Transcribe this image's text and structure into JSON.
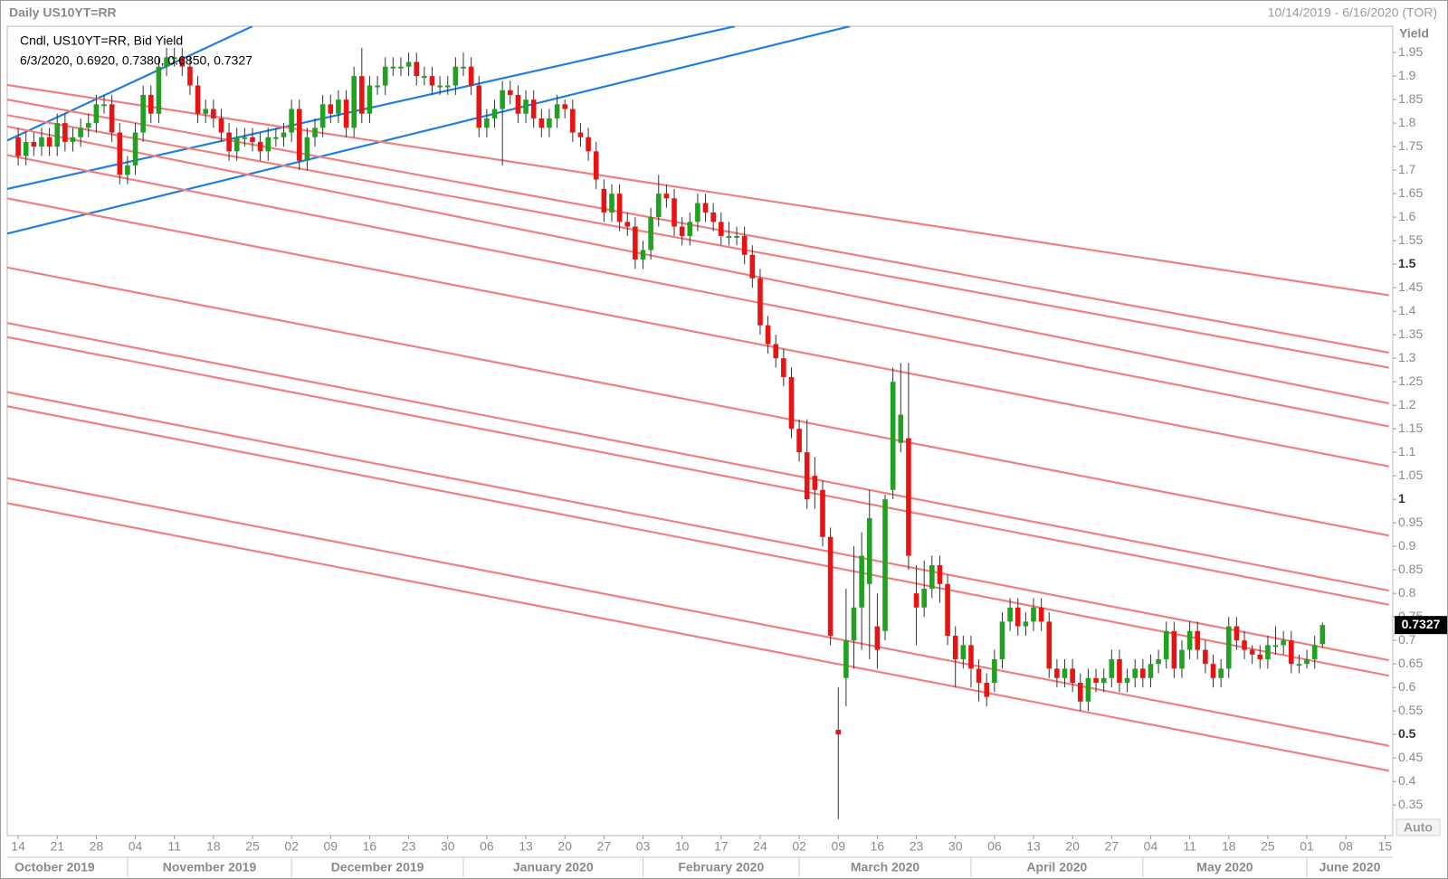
{
  "chart_data": {
    "type": "candlestick",
    "title": "Daily US10YT=RR",
    "date_range": "10/14/2019 - 6/16/2020 (TOR)",
    "legend_title": "Cndl, US10YT=RR, Bid Yield",
    "legend_info": "6/3/2020, 0.6920, 0.7380, 0.6850, 0.7327",
    "y_label": "Yield",
    "auto_button": "Auto",
    "up_color": "#22a022",
    "down_color": "#e81414",
    "xlim": [
      -1.4,
      176
    ],
    "ylim": [
      0.285,
      2.006
    ],
    "yticks": [
      0.35,
      0.4,
      0.45,
      0.5,
      0.55,
      0.6,
      0.65,
      0.7,
      0.75,
      0.8,
      0.85,
      0.9,
      0.95,
      1,
      1.05,
      1.1,
      1.15,
      1.2,
      1.25,
      1.3,
      1.35,
      1.4,
      1.45,
      1.5,
      1.55,
      1.6,
      1.65,
      1.7,
      1.75,
      1.8,
      1.85,
      1.9,
      1.95
    ],
    "xticks": [
      {
        "value": 0,
        "label": "14"
      },
      {
        "value": 5,
        "label": "21"
      },
      {
        "value": 10,
        "label": "28"
      },
      {
        "value": 15,
        "label": "04"
      },
      {
        "value": 20,
        "label": "11"
      },
      {
        "value": 25,
        "label": "18"
      },
      {
        "value": 30,
        "label": "25"
      },
      {
        "value": 35,
        "label": "02"
      },
      {
        "value": 40,
        "label": "09"
      },
      {
        "value": 45,
        "label": "16"
      },
      {
        "value": 50,
        "label": "23"
      },
      {
        "value": 55,
        "label": "30"
      },
      {
        "value": 60,
        "label": "06"
      },
      {
        "value": 65,
        "label": "13"
      },
      {
        "value": 70,
        "label": "20"
      },
      {
        "value": 75,
        "label": "27"
      },
      {
        "value": 80,
        "label": "03"
      },
      {
        "value": 85,
        "label": "10"
      },
      {
        "value": 90,
        "label": "17"
      },
      {
        "value": 95,
        "label": "24"
      },
      {
        "value": 100,
        "label": "02"
      },
      {
        "value": 105,
        "label": "09"
      },
      {
        "value": 110,
        "label": "16"
      },
      {
        "value": 115,
        "label": "23"
      },
      {
        "value": 120,
        "label": "30"
      },
      {
        "value": 125,
        "label": "06"
      },
      {
        "value": 130,
        "label": "13"
      },
      {
        "value": 135,
        "label": "20"
      },
      {
        "value": 140,
        "label": "27"
      },
      {
        "value": 145,
        "label": "04"
      },
      {
        "value": 150,
        "label": "11"
      },
      {
        "value": 155,
        "label": "18"
      },
      {
        "value": 160,
        "label": "25"
      },
      {
        "value": 165,
        "label": "01"
      },
      {
        "value": 170,
        "label": "08"
      },
      {
        "value": 175,
        "label": "15"
      }
    ],
    "month_labels": [
      {
        "value": -1.4,
        "label": "October 2019"
      },
      {
        "value": 14,
        "label": "November 2019"
      },
      {
        "value": 35,
        "label": "December 2019"
      },
      {
        "value": 57,
        "label": "January 2020"
      },
      {
        "value": 80,
        "label": "February 2020"
      },
      {
        "value": 100,
        "label": "March 2020"
      },
      {
        "value": 122,
        "label": "April 2020"
      },
      {
        "value": 144,
        "label": "May 2020"
      },
      {
        "value": 165,
        "label": "June 2020"
      }
    ],
    "trendlines": [
      {
        "color": "#1f7ee0",
        "points": [
          -1.4,
          1.763,
          30,
          2.006
        ]
      },
      {
        "color": "#1f7ee0",
        "points": [
          -1.4,
          1.66,
          91.8,
          2.006
        ]
      },
      {
        "color": "#1f7ee0",
        "points": [
          -1.4,
          1.565,
          106.5,
          2.006
        ]
      },
      {
        "color": "#f08080",
        "points": [
          -1.4,
          1.881,
          175.5,
          1.434
        ]
      },
      {
        "color": "#f08080",
        "points": [
          -1.4,
          1.85,
          175.5,
          1.312
        ]
      },
      {
        "color": "#f08080",
        "points": [
          -1.4,
          1.817,
          175.5,
          1.28
        ]
      },
      {
        "color": "#f08080",
        "points": [
          -1.4,
          1.793,
          175.5,
          1.204
        ]
      },
      {
        "color": "#f08080",
        "points": [
          -1.4,
          1.732,
          175.5,
          1.155
        ]
      },
      {
        "color": "#f08080",
        "points": [
          -1.4,
          1.64,
          175.5,
          1.07
        ]
      },
      {
        "color": "#f08080",
        "points": [
          -1.4,
          1.493,
          175.5,
          0.923
        ]
      },
      {
        "color": "#f08080",
        "points": [
          -1.4,
          1.375,
          175.5,
          0.806
        ]
      },
      {
        "color": "#f08080",
        "points": [
          -1.4,
          1.345,
          175.5,
          0.776
        ]
      },
      {
        "color": "#f08080",
        "points": [
          -1.4,
          1.228,
          175.5,
          0.658
        ]
      },
      {
        "color": "#f08080",
        "points": [
          -1.4,
          1.198,
          175.5,
          0.625
        ]
      },
      {
        "color": "#f08080",
        "points": [
          -1.4,
          1.045,
          175.5,
          0.476
        ]
      },
      {
        "color": "#f08080",
        "points": [
          -1.4,
          0.992,
          175.5,
          0.423
        ]
      }
    ],
    "candles": [
      [
        1.77,
        1.79,
        1.71,
        1.73
      ],
      [
        1.73,
        1.78,
        1.71,
        1.76
      ],
      [
        1.76,
        1.78,
        1.73,
        1.75
      ],
      [
        1.75,
        1.79,
        1.73,
        1.77
      ],
      [
        1.77,
        1.79,
        1.73,
        1.75
      ],
      [
        1.75,
        1.82,
        1.73,
        1.8
      ],
      [
        1.8,
        1.82,
        1.74,
        1.76
      ],
      [
        1.76,
        1.79,
        1.74,
        1.77
      ],
      [
        1.77,
        1.81,
        1.75,
        1.79
      ],
      [
        1.79,
        1.82,
        1.77,
        1.8
      ],
      [
        1.8,
        1.86,
        1.78,
        1.84
      ],
      [
        1.84,
        1.86,
        1.82,
        1.84
      ],
      [
        1.84,
        1.86,
        1.76,
        1.78
      ],
      [
        1.78,
        1.8,
        1.67,
        1.69
      ],
      [
        1.69,
        1.73,
        1.67,
        1.71
      ],
      [
        1.71,
        1.8,
        1.69,
        1.78
      ],
      [
        1.78,
        1.88,
        1.76,
        1.86
      ],
      [
        1.86,
        1.88,
        1.8,
        1.82
      ],
      [
        1.82,
        1.94,
        1.8,
        1.92
      ],
      [
        1.92,
        1.96,
        1.9,
        1.94
      ],
      [
        1.94,
        1.96,
        1.92,
        1.94
      ],
      [
        1.94,
        1.96,
        1.9,
        1.92
      ],
      [
        1.92,
        1.94,
        1.86,
        1.88
      ],
      [
        1.88,
        1.9,
        1.8,
        1.82
      ],
      [
        1.82,
        1.85,
        1.8,
        1.83
      ],
      [
        1.83,
        1.85,
        1.79,
        1.81
      ],
      [
        1.81,
        1.83,
        1.76,
        1.78
      ],
      [
        1.78,
        1.8,
        1.72,
        1.74
      ],
      [
        1.74,
        1.79,
        1.72,
        1.77
      ],
      [
        1.77,
        1.79,
        1.75,
        1.77
      ],
      [
        1.77,
        1.79,
        1.74,
        1.76
      ],
      [
        1.76,
        1.78,
        1.72,
        1.74
      ],
      [
        1.74,
        1.79,
        1.72,
        1.77
      ],
      [
        1.77,
        1.79,
        1.75,
        1.77
      ],
      [
        1.77,
        1.8,
        1.75,
        1.78
      ],
      [
        1.78,
        1.85,
        1.76,
        1.83
      ],
      [
        1.83,
        1.85,
        1.7,
        1.72
      ],
      [
        1.72,
        1.79,
        1.7,
        1.77
      ],
      [
        1.77,
        1.81,
        1.75,
        1.79
      ],
      [
        1.79,
        1.86,
        1.77,
        1.84
      ],
      [
        1.84,
        1.86,
        1.8,
        1.82
      ],
      [
        1.82,
        1.87,
        1.8,
        1.85
      ],
      [
        1.85,
        1.87,
        1.77,
        1.79
      ],
      [
        1.79,
        1.92,
        1.77,
        1.9
      ],
      [
        1.9,
        1.96,
        1.8,
        1.82
      ],
      [
        1.82,
        1.9,
        1.8,
        1.88
      ],
      [
        1.88,
        1.9,
        1.86,
        1.88
      ],
      [
        1.88,
        1.94,
        1.86,
        1.92
      ],
      [
        1.92,
        1.94,
        1.9,
        1.92
      ],
      [
        1.92,
        1.94,
        1.9,
        1.92
      ],
      [
        1.92,
        1.95,
        1.9,
        1.93
      ],
      [
        1.93,
        1.95,
        1.88,
        1.9
      ],
      [
        1.9,
        1.92,
        1.88,
        1.9
      ],
      [
        1.9,
        1.92,
        1.86,
        1.88
      ],
      [
        1.88,
        1.9,
        1.86,
        1.88
      ],
      [
        1.88,
        1.9,
        1.86,
        1.88
      ],
      [
        1.88,
        1.94,
        1.86,
        1.92
      ],
      [
        1.92,
        1.95,
        1.9,
        1.92
      ],
      [
        1.92,
        1.94,
        1.86,
        1.88
      ],
      [
        1.88,
        1.9,
        1.77,
        1.79
      ],
      [
        1.79,
        1.83,
        1.77,
        1.81
      ],
      [
        1.81,
        1.85,
        1.79,
        1.83
      ],
      [
        1.83,
        1.89,
        1.71,
        1.87
      ],
      [
        1.87,
        1.89,
        1.84,
        1.86
      ],
      [
        1.86,
        1.88,
        1.8,
        1.82
      ],
      [
        1.82,
        1.87,
        1.8,
        1.85
      ],
      [
        1.85,
        1.87,
        1.79,
        1.81
      ],
      [
        1.81,
        1.83,
        1.77,
        1.79
      ],
      [
        1.79,
        1.83,
        1.77,
        1.81
      ],
      [
        1.81,
        1.86,
        1.79,
        1.84
      ],
      [
        1.84,
        1.85,
        1.81,
        1.83
      ],
      [
        1.83,
        1.85,
        1.76,
        1.78
      ],
      [
        1.78,
        1.8,
        1.75,
        1.77
      ],
      [
        1.77,
        1.79,
        1.72,
        1.74
      ],
      [
        1.74,
        1.76,
        1.66,
        1.68
      ],
      [
        1.66,
        1.68,
        1.59,
        1.61
      ],
      [
        1.61,
        1.67,
        1.59,
        1.65
      ],
      [
        1.65,
        1.67,
        1.57,
        1.59
      ],
      [
        1.59,
        1.61,
        1.56,
        1.58
      ],
      [
        1.58,
        1.6,
        1.49,
        1.51
      ],
      [
        1.51,
        1.55,
        1.49,
        1.53
      ],
      [
        1.53,
        1.62,
        1.51,
        1.6
      ],
      [
        1.6,
        1.69,
        1.58,
        1.65
      ],
      [
        1.65,
        1.67,
        1.62,
        1.64
      ],
      [
        1.64,
        1.66,
        1.56,
        1.58
      ],
      [
        1.58,
        1.6,
        1.54,
        1.56
      ],
      [
        1.56,
        1.61,
        1.54,
        1.59
      ],
      [
        1.59,
        1.65,
        1.57,
        1.63
      ],
      [
        1.63,
        1.65,
        1.59,
        1.61
      ],
      [
        1.61,
        1.63,
        1.57,
        1.59
      ],
      [
        1.59,
        1.61,
        1.54,
        1.56
      ],
      [
        1.56,
        1.59,
        1.54,
        1.56
      ],
      [
        1.56,
        1.58,
        1.54,
        1.56
      ],
      [
        1.56,
        1.58,
        1.5,
        1.52
      ],
      [
        1.52,
        1.54,
        1.45,
        1.47
      ],
      [
        1.47,
        1.49,
        1.35,
        1.37
      ],
      [
        1.37,
        1.39,
        1.31,
        1.33
      ],
      [
        1.33,
        1.35,
        1.28,
        1.3
      ],
      [
        1.3,
        1.32,
        1.24,
        1.26
      ],
      [
        1.26,
        1.28,
        1.13,
        1.15
      ],
      [
        1.15,
        1.17,
        1.08,
        1.1
      ],
      [
        1.1,
        1.17,
        0.98,
        1.0
      ],
      [
        1.05,
        1.09,
        0.98,
        1.02
      ],
      [
        1.02,
        1.04,
        0.9,
        0.92
      ],
      [
        0.92,
        0.94,
        0.69,
        0.71
      ],
      [
        0.51,
        0.6,
        0.32,
        0.5
      ],
      [
        0.62,
        0.81,
        0.56,
        0.7
      ],
      [
        0.7,
        0.9,
        0.64,
        0.77
      ],
      [
        0.77,
        0.93,
        0.68,
        0.88
      ],
      [
        0.82,
        1.02,
        0.66,
        0.96
      ],
      [
        0.73,
        0.8,
        0.64,
        0.68
      ],
      [
        0.72,
        1.01,
        0.7,
        1.0
      ],
      [
        1.02,
        1.28,
        1.0,
        1.25
      ],
      [
        1.12,
        1.29,
        1.1,
        1.18
      ],
      [
        1.13,
        1.29,
        0.85,
        0.88
      ],
      [
        0.8,
        0.86,
        0.69,
        0.77
      ],
      [
        0.77,
        0.87,
        0.75,
        0.81
      ],
      [
        0.81,
        0.88,
        0.79,
        0.86
      ],
      [
        0.86,
        0.88,
        0.78,
        0.82
      ],
      [
        0.82,
        0.84,
        0.69,
        0.71
      ],
      [
        0.71,
        0.73,
        0.6,
        0.66
      ],
      [
        0.66,
        0.71,
        0.64,
        0.69
      ],
      [
        0.69,
        0.71,
        0.6,
        0.64
      ],
      [
        0.64,
        0.66,
        0.57,
        0.61
      ],
      [
        0.61,
        0.63,
        0.56,
        0.58
      ],
      [
        0.61,
        0.68,
        0.59,
        0.66
      ],
      [
        0.66,
        0.76,
        0.64,
        0.74
      ],
      [
        0.74,
        0.79,
        0.72,
        0.77
      ],
      [
        0.77,
        0.79,
        0.71,
        0.73
      ],
      [
        0.73,
        0.76,
        0.71,
        0.74
      ],
      [
        0.74,
        0.79,
        0.72,
        0.77
      ],
      [
        0.77,
        0.79,
        0.72,
        0.74
      ],
      [
        0.74,
        0.76,
        0.62,
        0.64
      ],
      [
        0.64,
        0.66,
        0.6,
        0.62
      ],
      [
        0.62,
        0.66,
        0.6,
        0.64
      ],
      [
        0.64,
        0.66,
        0.59,
        0.61
      ],
      [
        0.61,
        0.63,
        0.55,
        0.57
      ],
      [
        0.57,
        0.64,
        0.55,
        0.62
      ],
      [
        0.62,
        0.64,
        0.59,
        0.61
      ],
      [
        0.61,
        0.64,
        0.59,
        0.62
      ],
      [
        0.62,
        0.68,
        0.6,
        0.66
      ],
      [
        0.66,
        0.68,
        0.59,
        0.61
      ],
      [
        0.61,
        0.64,
        0.59,
        0.62
      ],
      [
        0.62,
        0.66,
        0.6,
        0.64
      ],
      [
        0.64,
        0.66,
        0.6,
        0.62
      ],
      [
        0.62,
        0.67,
        0.6,
        0.65
      ],
      [
        0.65,
        0.68,
        0.63,
        0.66
      ],
      [
        0.66,
        0.74,
        0.64,
        0.72
      ],
      [
        0.72,
        0.74,
        0.62,
        0.64
      ],
      [
        0.64,
        0.7,
        0.62,
        0.68
      ],
      [
        0.68,
        0.74,
        0.66,
        0.72
      ],
      [
        0.72,
        0.74,
        0.66,
        0.68
      ],
      [
        0.68,
        0.7,
        0.63,
        0.65
      ],
      [
        0.65,
        0.67,
        0.6,
        0.62
      ],
      [
        0.62,
        0.66,
        0.6,
        0.64
      ],
      [
        0.64,
        0.75,
        0.62,
        0.73
      ],
      [
        0.73,
        0.75,
        0.68,
        0.7
      ],
      [
        0.7,
        0.72,
        0.66,
        0.68
      ],
      [
        0.68,
        0.69,
        0.65,
        0.67
      ],
      [
        0.67,
        0.69,
        0.64,
        0.66
      ],
      [
        0.66,
        0.71,
        0.64,
        0.69
      ],
      [
        0.69,
        0.73,
        0.67,
        0.69
      ],
      [
        0.69,
        0.72,
        0.67,
        0.7
      ],
      [
        0.7,
        0.72,
        0.63,
        0.65
      ],
      [
        0.65,
        0.67,
        0.63,
        0.65
      ],
      [
        0.65,
        0.68,
        0.64,
        0.66
      ],
      [
        0.66,
        0.71,
        0.64,
        0.69
      ],
      [
        0.692,
        0.738,
        0.685,
        0.7327
      ]
    ]
  }
}
